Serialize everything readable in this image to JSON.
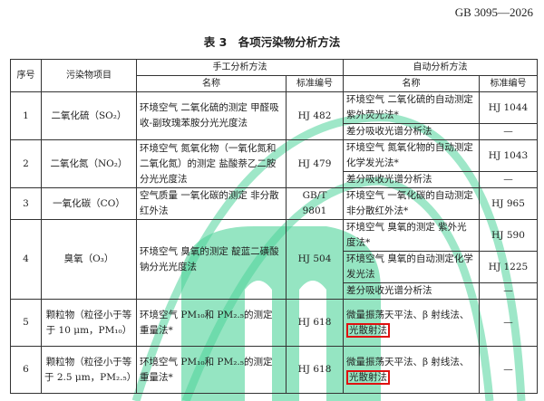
{
  "header": {
    "standard_number": "GB 3095—2026",
    "table_title": "表 3　各项污染物分析方法"
  },
  "columns": {
    "seq": "序号",
    "pollutant": "污染物项目",
    "manual": "手工分析方法",
    "auto": "自动分析方法",
    "name": "名称",
    "std_no": "标准编号"
  },
  "rows": [
    {
      "seq": "1",
      "pollutant": "二氧化硫（SO₂）",
      "manual_name": "环境空气 二氧化硫的测定 甲醛吸收-副玫瑰苯胺分光光度法",
      "manual_std": "HJ 482",
      "auto": [
        {
          "name": "环境空气 二氧化硫的自动测定 紫外荧光法*",
          "std": "HJ 1044"
        },
        {
          "name": "差分吸收光谱分析法",
          "std": "—"
        }
      ]
    },
    {
      "seq": "2",
      "pollutant": "二氧化氮（NO₂）",
      "manual_name": "环境空气 氮氧化物（一氧化氮和二氧化氮）的测定 盐酸萘乙二胺分光光度法",
      "manual_std": "HJ 479",
      "auto": [
        {
          "name": "环境空气 氮氧化物的自动测定 化学发光法*",
          "std": "HJ 1043"
        },
        {
          "name": "差分吸收光谱分析法",
          "std": "—"
        }
      ]
    },
    {
      "seq": "3",
      "pollutant": "一氧化碳（CO）",
      "manual_name": "空气质量 一氧化碳的测定 非分散红外法",
      "manual_std": "GB/T 9801",
      "auto": [
        {
          "name": "环境空气 一氧化碳的自动测定 非分散红外法*",
          "std": "HJ 965"
        }
      ]
    },
    {
      "seq": "4",
      "pollutant": "臭氧（O₃）",
      "manual_name": "环境空气 臭氧的测定 靛蓝二磺酸钠分光光度法",
      "manual_std": "HJ 504",
      "auto": [
        {
          "name": "环境空气 臭氧的测定 紫外光度法*",
          "std": "HJ 590"
        },
        {
          "name": "环境空气 臭氧的自动测定化学发光法",
          "std": "HJ 1225"
        },
        {
          "name": "差分吸收光谱分析法",
          "std": "—"
        }
      ]
    },
    {
      "seq": "5",
      "pollutant": "颗粒物（粒径小于等于 10 μm，PM₁₀）",
      "manual_name": "环境空气 PM₁₀和 PM₂.₅的测定 重量法*",
      "manual_std": "HJ 618",
      "auto": [
        {
          "name": "微量振荡天平法、β 射线法、",
          "highlight": "光散射法",
          "std": "—"
        }
      ]
    },
    {
      "seq": "6",
      "pollutant": "颗粒物（粒径小于等于 2.5 μm，PM₂.₅）",
      "manual_name": "环境空气 PM₁₀和 PM₂.₅的测定 重量法*",
      "manual_std": "HJ 618",
      "auto": [
        {
          "name": "微量振荡天平法、β 射线法、",
          "highlight": "光散射法",
          "std": "—"
        }
      ]
    }
  ],
  "colors": {
    "highlight_box": "#e01010",
    "watermark": "#4fd49a"
  }
}
